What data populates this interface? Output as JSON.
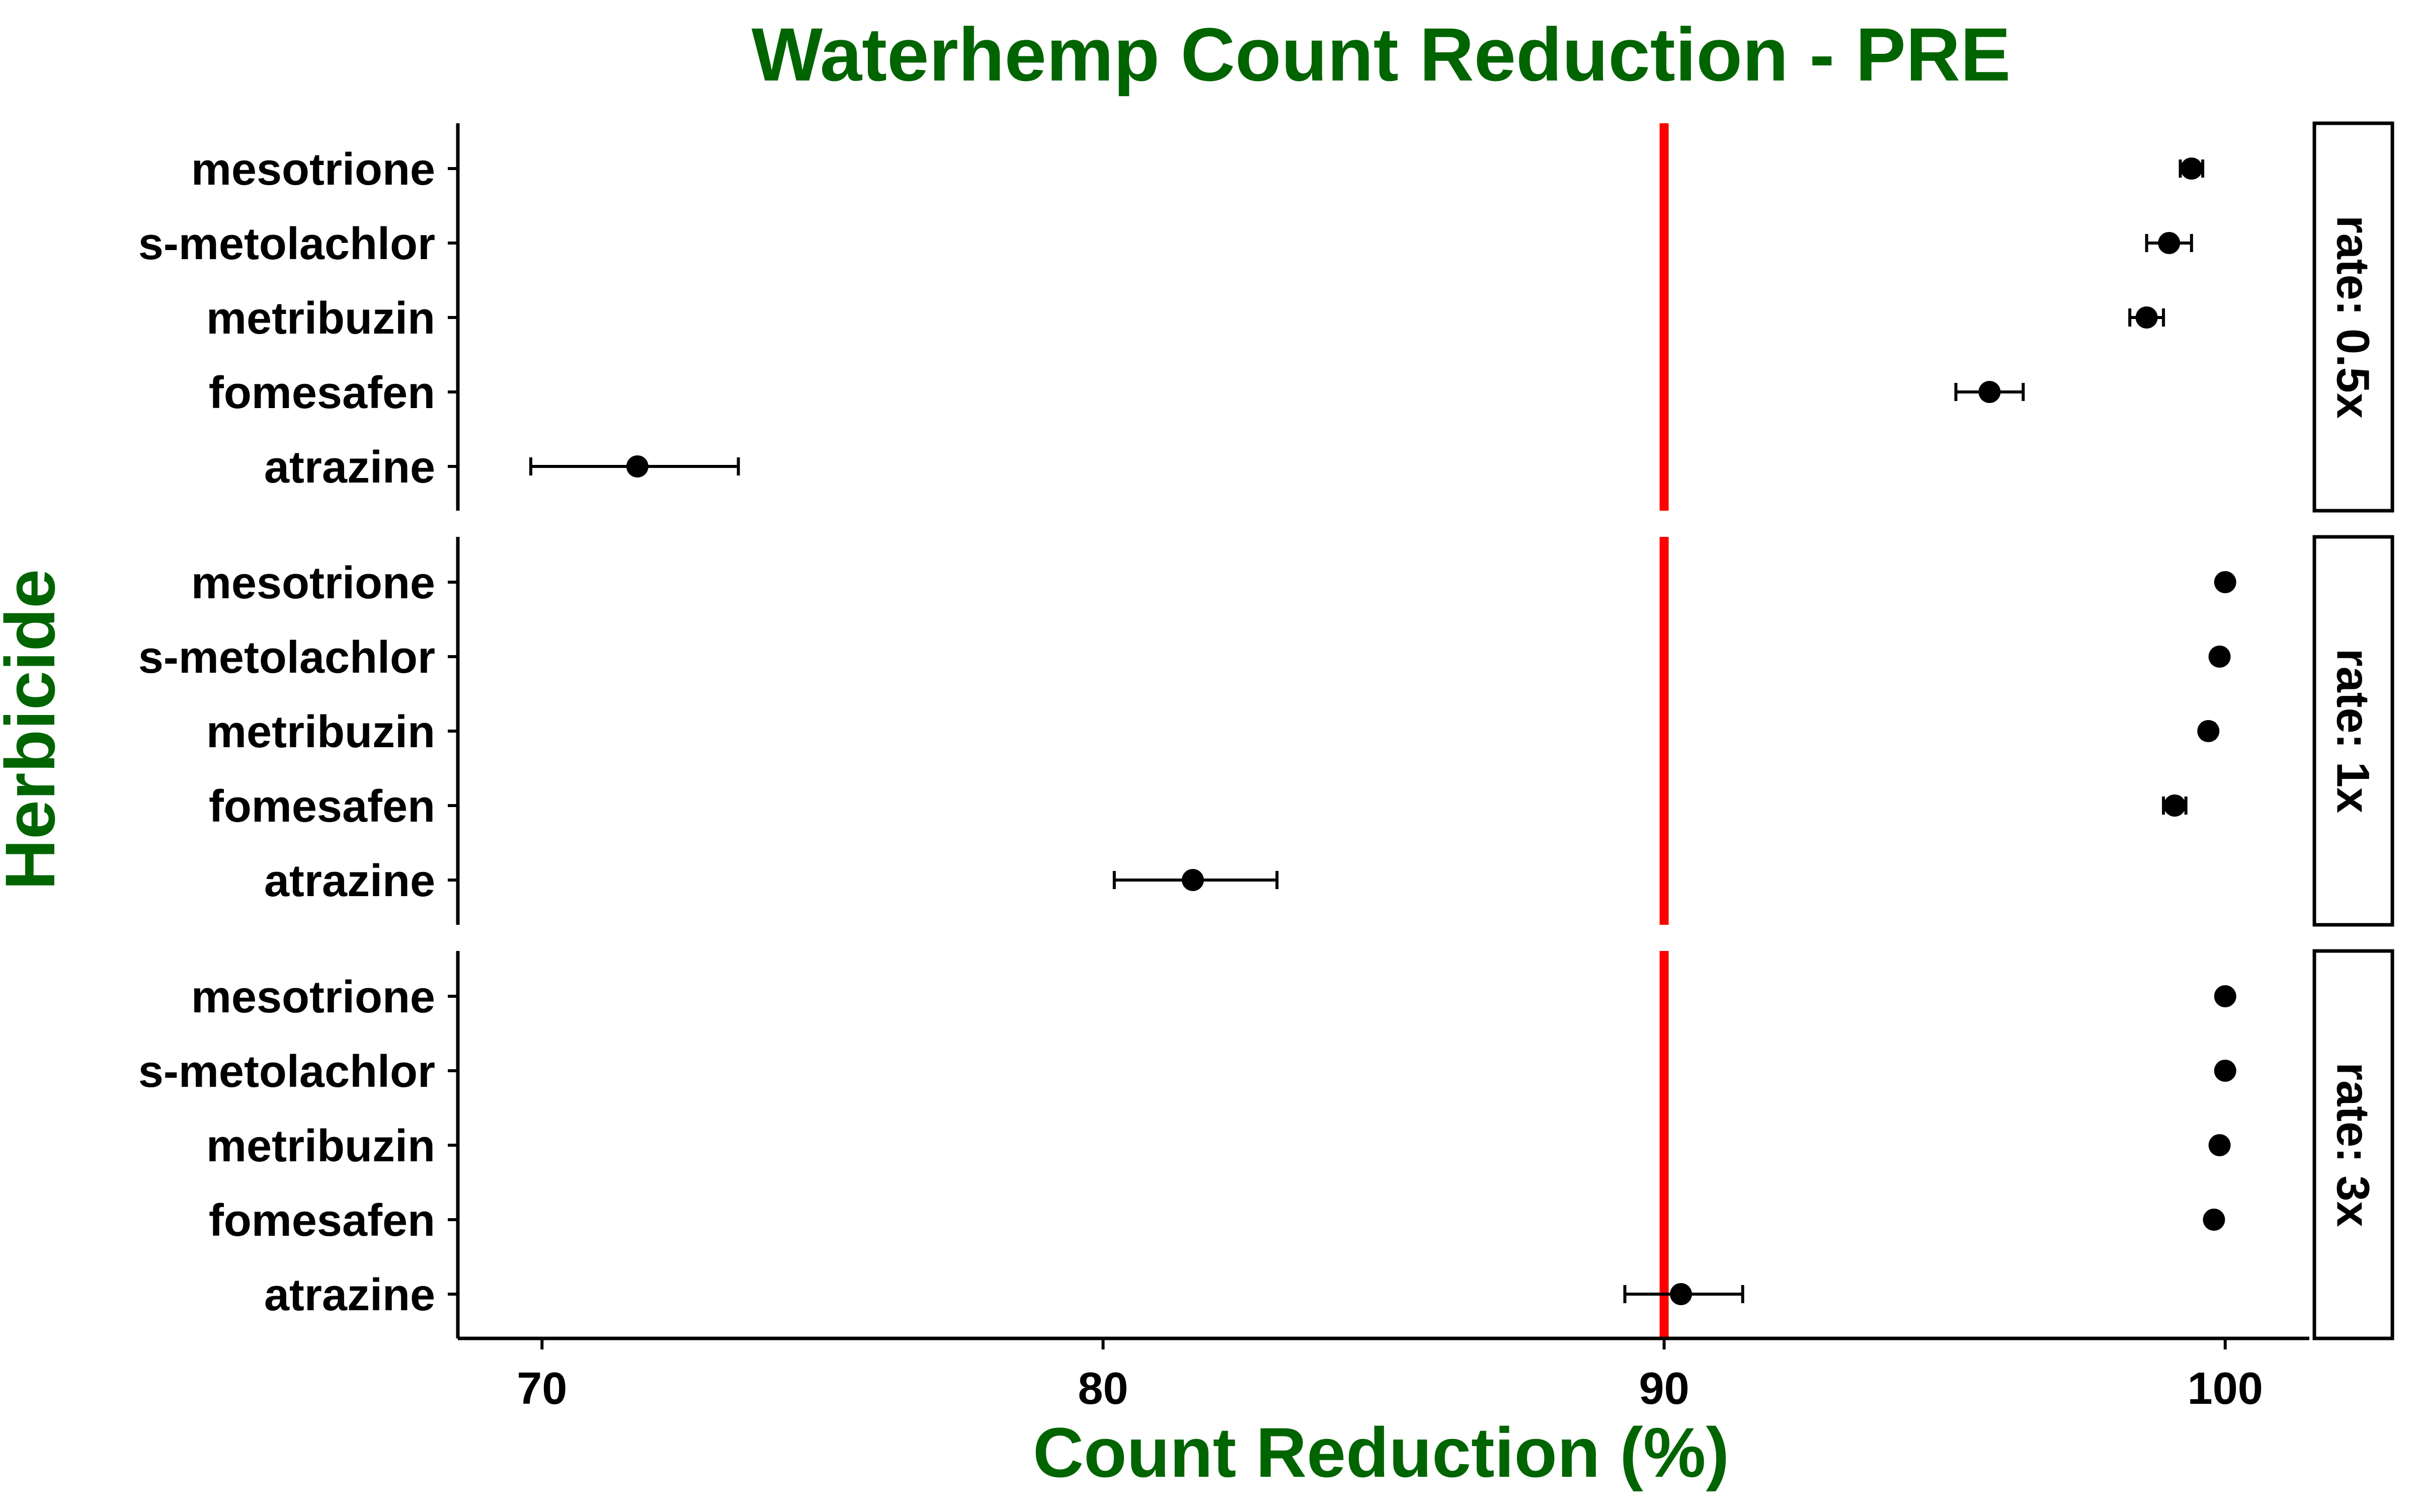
{
  "colors": {
    "title": "#006400",
    "reference_line": "#ff0000",
    "points": "#000000",
    "axis": "#000000",
    "background": "#ffffff"
  },
  "chart_data": {
    "type": "scatter",
    "title": "Waterhemp Count Reduction - PRE",
    "xlabel": "Count Reduction (%)",
    "ylabel": "Herbicide",
    "xlim": [
      68.5,
      101.5
    ],
    "x_ticks": [
      "70",
      "80",
      "90",
      "100"
    ],
    "reference_line": 90,
    "grid": false,
    "categories": [
      "mesotrione",
      "s-metolachlor",
      "metribuzin",
      "fomesafen",
      "atrazine"
    ],
    "panels": [
      {
        "label": "rate: 0.5x",
        "points": [
          {
            "herbicide": "mesotrione",
            "value": 99.4,
            "low": 99.2,
            "high": 99.6
          },
          {
            "herbicide": "s-metolachlor",
            "value": 99.0,
            "low": 98.6,
            "high": 99.4
          },
          {
            "herbicide": "metribuzin",
            "value": 98.6,
            "low": 98.3,
            "high": 98.9
          },
          {
            "herbicide": "fomesafen",
            "value": 95.8,
            "low": 95.2,
            "high": 96.4
          },
          {
            "herbicide": "atrazine",
            "value": 71.7,
            "low": 69.8,
            "high": 73.5
          }
        ]
      },
      {
        "label": "rate: 1x",
        "points": [
          {
            "herbicide": "mesotrione",
            "value": 100.0,
            "low": 100.0,
            "high": 100.0
          },
          {
            "herbicide": "s-metolachlor",
            "value": 99.9,
            "low": 99.9,
            "high": 99.9
          },
          {
            "herbicide": "metribuzin",
            "value": 99.7,
            "low": 99.6,
            "high": 99.8
          },
          {
            "herbicide": "fomesafen",
            "value": 99.1,
            "low": 98.9,
            "high": 99.3
          },
          {
            "herbicide": "atrazine",
            "value": 81.6,
            "low": 80.2,
            "high": 83.1
          }
        ]
      },
      {
        "label": "rate: 3x",
        "points": [
          {
            "herbicide": "mesotrione",
            "value": 100.0,
            "low": 100.0,
            "high": 100.0
          },
          {
            "herbicide": "s-metolachlor",
            "value": 100.0,
            "low": 100.0,
            "high": 100.0
          },
          {
            "herbicide": "metribuzin",
            "value": 99.9,
            "low": 99.9,
            "high": 99.9
          },
          {
            "herbicide": "fomesafen",
            "value": 99.8,
            "low": 99.8,
            "high": 99.8
          },
          {
            "herbicide": "atrazine",
            "value": 90.3,
            "low": 89.3,
            "high": 91.4
          }
        ]
      }
    ]
  }
}
